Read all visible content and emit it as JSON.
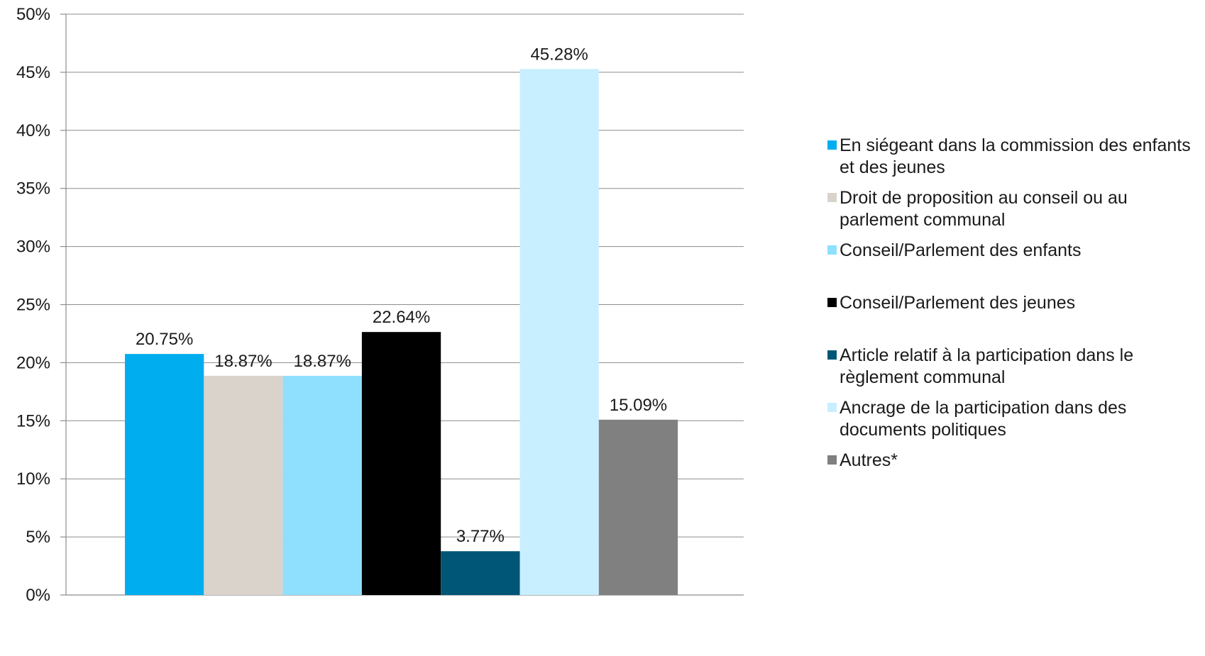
{
  "chart_data": {
    "type": "bar",
    "title": "",
    "xlabel": "",
    "ylabel": "",
    "ylim": [
      0,
      50
    ],
    "y_ticks": [
      "0%",
      "5%",
      "10%",
      "15%",
      "20%",
      "25%",
      "30%",
      "35%",
      "40%",
      "45%",
      "50%"
    ],
    "grid": true,
    "legend_position": "right",
    "series": [
      {
        "name": "En siégeant dans la commission des enfants et des jeunes",
        "value": 20.75,
        "label": "20.75%",
        "color": "#00aeef"
      },
      {
        "name": "Droit de proposition au conseil ou au parlement communal",
        "value": 18.87,
        "label": "18.87%",
        "color": "#d9d3cc"
      },
      {
        "name": "Conseil/Parlement des enfants",
        "value": 18.87,
        "label": "18.87%",
        "color": "#8fdfff"
      },
      {
        "name": "Conseil/Parlement des jeunes",
        "value": 22.64,
        "label": "22.64%",
        "color": "#000000"
      },
      {
        "name": "Article relatif à la participation dans le règlement communal",
        "value": 3.77,
        "label": "3.77%",
        "color": "#005677"
      },
      {
        "name": "Ancrage de la participation dans des documents politiques",
        "value": 45.28,
        "label": "45.28%",
        "color": "#c8efff"
      },
      {
        "name": "Autres*",
        "value": 15.09,
        "label": "15.09%",
        "color": "#808080"
      }
    ]
  }
}
